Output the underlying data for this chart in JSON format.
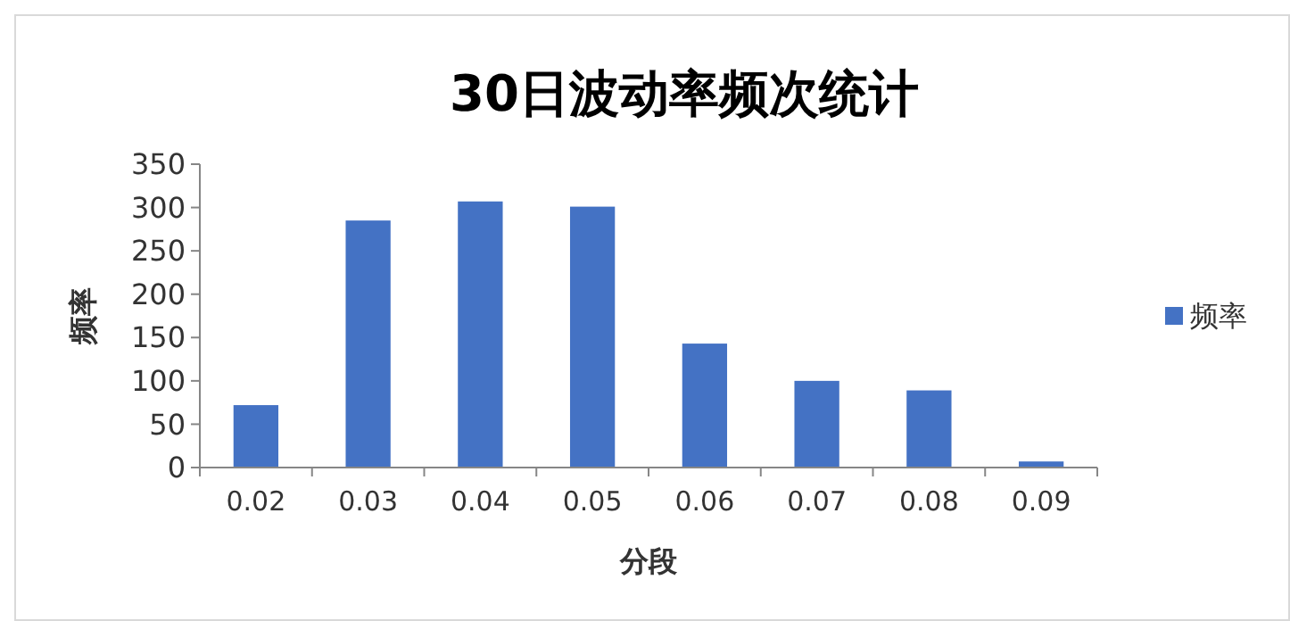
{
  "chart_data": {
    "type": "bar",
    "title": "30日波动率频次统计",
    "xlabel": "分段",
    "ylabel": "频率",
    "categories": [
      "0.02",
      "0.03",
      "0.04",
      "0.05",
      "0.06",
      "0.07",
      "0.08",
      "0.09"
    ],
    "series": [
      {
        "name": "频率",
        "color": "#4472c4",
        "values": [
          72,
          285,
          307,
          301,
          143,
          100,
          89,
          7
        ]
      }
    ],
    "ylim": [
      0,
      350
    ],
    "yticks": [
      0,
      50,
      100,
      150,
      200,
      250,
      300,
      350
    ],
    "grid": false,
    "legend": "right"
  }
}
